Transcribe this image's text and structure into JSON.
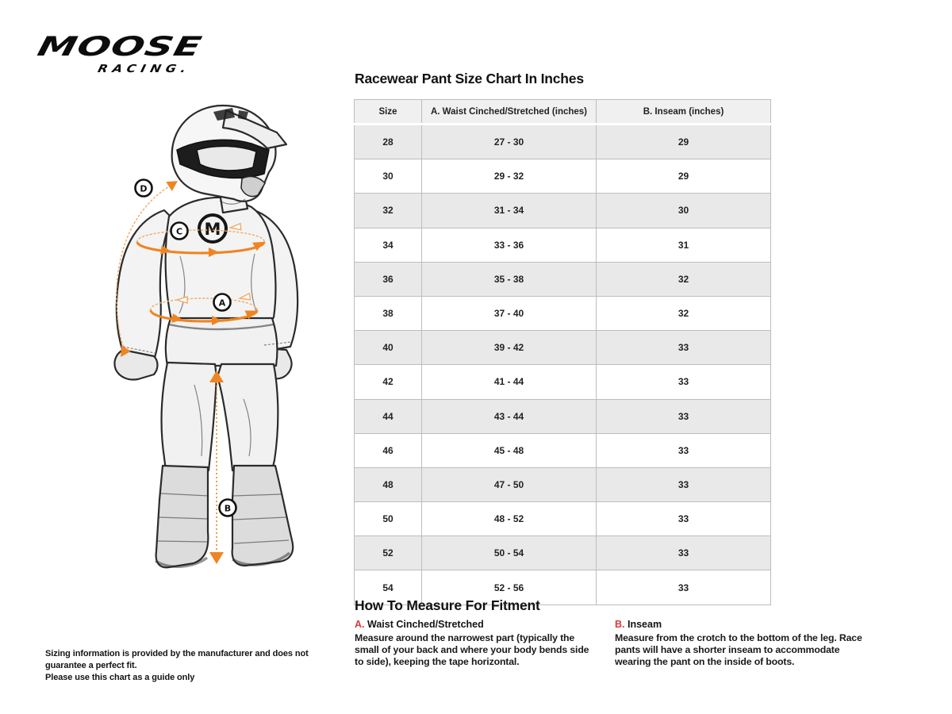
{
  "colors": {
    "accent_orange": "#EE8522",
    "accent_orange_light": "#F3A963",
    "accent_red": "#D93A35"
  },
  "brand": {
    "wordmark": "MOOSE",
    "sub": "RACING."
  },
  "size_chart": {
    "title": "Racewear Pant Size Chart In Inches",
    "columns": [
      "Size",
      "A. Waist Cinched/Stretched (inches)",
      "B. Inseam (inches)"
    ],
    "rows": [
      [
        "28",
        "27 - 30",
        "29"
      ],
      [
        "30",
        "29 - 32",
        "29"
      ],
      [
        "32",
        "31 - 34",
        "30"
      ],
      [
        "34",
        "33 - 36",
        "31"
      ],
      [
        "36",
        "35 - 38",
        "32"
      ],
      [
        "38",
        "37 - 40",
        "32"
      ],
      [
        "40",
        "39 - 42",
        "33"
      ],
      [
        "42",
        "41 - 44",
        "33"
      ],
      [
        "44",
        "43 - 44",
        "33"
      ],
      [
        "46",
        "45 - 48",
        "33"
      ],
      [
        "48",
        "47 - 50",
        "33"
      ],
      [
        "50",
        "48 - 52",
        "33"
      ],
      [
        "52",
        "50 - 54",
        "33"
      ],
      [
        "54",
        "52 - 56",
        "33"
      ]
    ]
  },
  "how_to_measure": {
    "title": "How To Measure For Fitment",
    "items": [
      {
        "letter": "A.",
        "label": "Waist Cinched/Stretched",
        "description": "Measure around the narrowest part (typically the small of your back and where your body bends side to side), keeping the tape horizontal."
      },
      {
        "letter": "B.",
        "label": "Inseam",
        "description": "Measure from the crotch to the bottom of the leg. Race pants will have a shorter inseam to accommodate wearing the pant on the inside of boots."
      }
    ]
  },
  "figure": {
    "markers": {
      "a": "A",
      "b": "B",
      "c": "C",
      "d": "D"
    },
    "jersey_logo": "M"
  },
  "disclaimer": {
    "line1": "Sizing information is provided by the manufacturer and does not guarantee a perfect fit.",
    "line2": "Please use this chart as a guide only"
  }
}
